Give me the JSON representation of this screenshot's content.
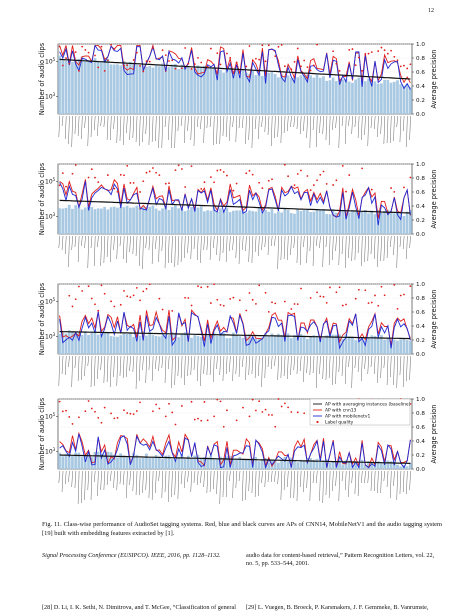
{
  "page_number": "12",
  "figure": {
    "caption": "Fig. 11.  Class-wise performance of AudioSet tagging systems. Red, blue and black curves are APs of CNN14, MobileNetV1 and the audio tagging system [19] built with embedding features extracted by [1].",
    "left_axis_label": "Number of audio clips",
    "right_axis_label": "Average precision",
    "legend": [
      "AP with averaging instances (baseline)",
      "AP with cnn13",
      "AP with mobilenetv1",
      "Label quality"
    ],
    "colors": {
      "bars": "#a9c9e3",
      "cnn": "#e0201b",
      "mobilenet": "#1f2bd6",
      "baseline": "#111111",
      "label_quality": "#e0201b"
    }
  },
  "chart_data": [
    {
      "type": "bar",
      "title": "",
      "ylabel_left": "Number of audio clips",
      "ylabel_right": "Average precision",
      "yleft_scale": "log",
      "yleft_ticks": [
        "10^3",
        "10^5"
      ],
      "yright_ticks": [
        "0.0",
        "0.2",
        "0.4",
        "0.6",
        "0.8",
        "1.0"
      ],
      "ylim_right": [
        0,
        1
      ],
      "num_classes": 110,
      "series_note": "class-wise clips (bars), CNN14 AP (red), MobileNetV1 AP (blue), baseline AP (black), label quality (red dots)",
      "clips_start_log10": 5.2,
      "clips_end_log10": 3.7,
      "baseline_start": 0.78,
      "baseline_end": 0.5
    },
    {
      "type": "bar",
      "title": "",
      "ylabel_left": "Number of audio clips",
      "ylabel_right": "Average precision",
      "yleft_scale": "log",
      "yleft_ticks": [
        "10^3",
        "10^5"
      ],
      "yright_ticks": [
        "0.0",
        "0.2",
        "0.4",
        "0.6",
        "0.8",
        "1.0"
      ],
      "ylim_right": [
        0,
        1
      ],
      "num_classes": 110,
      "clips_start_log10": 3.6,
      "clips_end_log10": 3.2,
      "baseline_start": 0.48,
      "baseline_end": 0.3
    },
    {
      "type": "bar",
      "title": "",
      "ylabel_left": "Number of audio clips",
      "ylabel_right": "Average precision",
      "yleft_scale": "log",
      "yleft_ticks": [
        "10^3",
        "10^5"
      ],
      "yright_ticks": [
        "0.0",
        "0.2",
        "0.4",
        "0.6",
        "0.8",
        "1.0"
      ],
      "ylim_right": [
        0,
        1
      ],
      "num_classes": 110,
      "clips_start_log10": 3.2,
      "clips_end_log10": 2.9,
      "baseline_start": 0.32,
      "baseline_end": 0.22
    },
    {
      "type": "bar",
      "title": "",
      "ylabel_left": "Number of audio clips",
      "ylabel_right": "Average precision",
      "yleft_scale": "log",
      "yleft_ticks": [
        "10^3",
        "10^5"
      ],
      "yright_ticks": [
        "0.0",
        "0.2",
        "0.4",
        "0.6",
        "0.8",
        "1.0"
      ],
      "ylim_right": [
        0,
        1
      ],
      "num_classes": 110,
      "clips_start_log10": 2.9,
      "clips_end_log10": 2.3,
      "baseline_start": 0.2,
      "baseline_end": 0.08,
      "legend": [
        "AP with averaging instances (baseline)",
        "AP with cnn13",
        "AP with mobilenetv1",
        "Label quality"
      ],
      "legend_position": "top-right"
    }
  ],
  "references": {
    "left_partial": "Signal Processing Conference (EUSIPCO).    IEEE, 2016, pp. 1128–1132.",
    "left_28": "[28]  D. Li, I. K. Sethi, N. Dimitrova, and T. McGee, “Classification of general",
    "right_partial": "audio data for content-based retrieval,” Pattern Recognition Letters, vol. 22, no. 5, pp. 533–544, 2001.",
    "right_29": "[29]  L. Vuegen, B. Broeck, P. Karsmakers, J. F. Gemmeke, B. Vanrumste,"
  }
}
